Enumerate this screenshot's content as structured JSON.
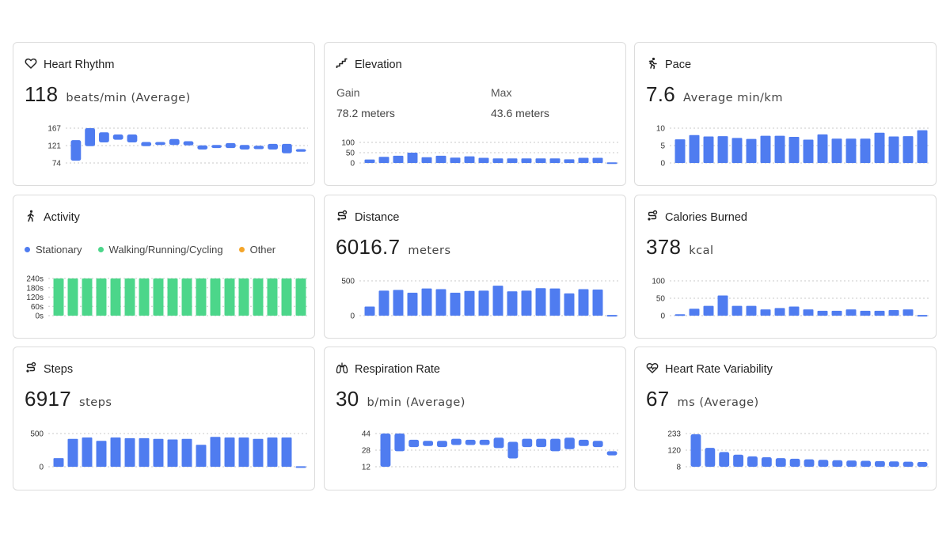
{
  "colors": {
    "bar": "#4f7cf0",
    "green": "#4cd68a",
    "orange": "#f4a52a",
    "grid": "#c8c8c8"
  },
  "cards": {
    "heart_rhythm": {
      "title": "Heart Rhythm",
      "icon": "heart-icon",
      "value": "118",
      "unit": "beats/min (Average)",
      "chart_data": {
        "type": "bar",
        "subtype": "range",
        "yticks": [
          "167",
          "121",
          "74"
        ],
        "ylim": [
          74,
          167
        ],
        "ranges": [
          [
            80,
            135
          ],
          [
            119,
            167
          ],
          [
            129,
            156
          ],
          [
            136,
            150
          ],
          [
            129,
            150
          ],
          [
            119,
            130
          ],
          [
            122,
            130
          ],
          [
            122,
            138
          ],
          [
            121,
            132
          ],
          [
            110,
            121
          ],
          [
            114,
            122
          ],
          [
            114,
            127
          ],
          [
            110,
            122
          ],
          [
            111,
            120
          ],
          [
            110,
            125
          ],
          [
            100,
            125
          ],
          [
            104,
            111
          ]
        ]
      }
    },
    "elevation": {
      "title": "Elevation",
      "icon": "stairs-icon",
      "gain_label": "Gain",
      "gain_value": "78.2 meters",
      "max_label": "Max",
      "max_value": "43.6 meters",
      "chart_data": {
        "type": "bar",
        "yticks": [
          "100",
          "50",
          "0"
        ],
        "ylim": [
          0,
          100
        ],
        "values": [
          17,
          30,
          35,
          50,
          28,
          35,
          26,
          32,
          25,
          22,
          22,
          22,
          22,
          22,
          18,
          25,
          25,
          3
        ]
      }
    },
    "pace": {
      "title": "Pace",
      "icon": "runner-icon",
      "value": "7.6",
      "unit": "Average min/km",
      "chart_data": {
        "type": "bar",
        "yticks": [
          "10",
          "5",
          "0"
        ],
        "ylim": [
          0,
          10
        ],
        "values": [
          6.8,
          8.0,
          7.6,
          7.7,
          7.2,
          6.9,
          7.8,
          7.8,
          7.5,
          6.7,
          8.2,
          7.0,
          7.0,
          7.0,
          8.7,
          7.6,
          7.7,
          9.4
        ]
      }
    },
    "activity": {
      "title": "Activity",
      "icon": "walker-icon",
      "legend": [
        {
          "label": "Stationary",
          "color": "#4f7cf0"
        },
        {
          "label": "Walking/Running/Cycling",
          "color": "#4cd68a"
        },
        {
          "label": "Other",
          "color": "#f4a52a"
        }
      ],
      "chart_data": {
        "type": "bar",
        "yticks": [
          "240s",
          "180s",
          "120s",
          "60s",
          "0s"
        ],
        "ylim": [
          0,
          240
        ],
        "values": [
          240,
          240,
          240,
          240,
          240,
          240,
          240,
          240,
          240,
          240,
          240,
          240,
          240,
          240,
          240,
          240,
          240,
          240
        ]
      }
    },
    "distance": {
      "title": "Distance",
      "icon": "route-icon",
      "value": "6016.7",
      "unit": "meters",
      "chart_data": {
        "type": "bar",
        "yticks": [
          "500",
          "0"
        ],
        "ylim": [
          0,
          500
        ],
        "values": [
          130,
          360,
          370,
          330,
          390,
          380,
          330,
          355,
          360,
          430,
          350,
          360,
          395,
          390,
          320,
          380,
          375,
          10
        ]
      }
    },
    "calories": {
      "title": "Calories Burned",
      "icon": "route-icon",
      "value": "378",
      "unit": "kcal",
      "chart_data": {
        "type": "bar",
        "yticks": [
          "100",
          "50",
          "0"
        ],
        "ylim": [
          0,
          100
        ],
        "values": [
          4,
          20,
          28,
          58,
          28,
          28,
          18,
          22,
          26,
          18,
          14,
          14,
          18,
          14,
          14,
          16,
          18,
          2
        ]
      }
    },
    "steps": {
      "title": "Steps",
      "icon": "route-icon",
      "value": "6917",
      "unit": "steps",
      "chart_data": {
        "type": "bar",
        "yticks": [
          "500",
          "0"
        ],
        "ylim": [
          0,
          500
        ],
        "values": [
          130,
          420,
          440,
          390,
          440,
          430,
          430,
          420,
          410,
          420,
          330,
          450,
          440,
          440,
          420,
          440,
          440,
          8
        ]
      }
    },
    "respiration": {
      "title": "Respiration Rate",
      "icon": "lungs-icon",
      "value": "30",
      "unit": "b/min (Average)",
      "chart_data": {
        "type": "bar",
        "subtype": "range",
        "yticks": [
          "44",
          "28",
          "12"
        ],
        "ylim": [
          12,
          44
        ],
        "ranges": [
          [
            12,
            44
          ],
          [
            27,
            44
          ],
          [
            31,
            38
          ],
          [
            32,
            37
          ],
          [
            31,
            37
          ],
          [
            33,
            39
          ],
          [
            33,
            38
          ],
          [
            33,
            38
          ],
          [
            30,
            40
          ],
          [
            20,
            36
          ],
          [
            31,
            39
          ],
          [
            31,
            39
          ],
          [
            27,
            39
          ],
          [
            29,
            40
          ],
          [
            32,
            38
          ],
          [
            31,
            37
          ],
          [
            23,
            27
          ]
        ]
      }
    },
    "hrv": {
      "title": "Heart Rate Variability",
      "icon": "heartbeat-icon",
      "value": "67",
      "unit": "ms (Average)",
      "chart_data": {
        "type": "bar",
        "subtype": "range",
        "yticks": [
          "233",
          "120",
          "8"
        ],
        "ylim": [
          8,
          233
        ],
        "ranges": [
          [
            8,
            228
          ],
          [
            8,
            136
          ],
          [
            8,
            108
          ],
          [
            8,
            90
          ],
          [
            8,
            78
          ],
          [
            8,
            72
          ],
          [
            8,
            66
          ],
          [
            8,
            62
          ],
          [
            8,
            58
          ],
          [
            8,
            55
          ],
          [
            8,
            52
          ],
          [
            8,
            50
          ],
          [
            8,
            48
          ],
          [
            8,
            46
          ],
          [
            8,
            44
          ],
          [
            8,
            42
          ],
          [
            8,
            40
          ]
        ]
      }
    }
  }
}
